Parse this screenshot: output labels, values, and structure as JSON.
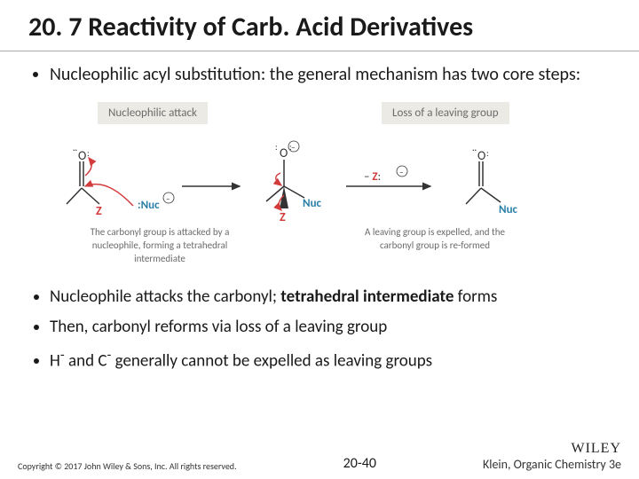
{
  "title": "20. 7 Reactivity of Carb. Acid Derivatives",
  "bullets_top": [
    "Nucleophilic acyl substitution: the general mechanism has  two core steps:"
  ],
  "bullets_bottom": [
    {
      "html": "Nucleophile attacks the carbonyl; <b>tetrahedral intermediate</b> forms"
    },
    {
      "html": "Then, carbonyl reforms via loss of a leaving group"
    },
    {
      "html": "H<sup>-</sup> and C<sup>-</sup> generally cannot be expelled as leaving groups"
    }
  ],
  "diagram": {
    "stage1_label": "Nucleophilic attack",
    "stage2_label": "Loss of a leaving group",
    "caption1": "The carbonyl group\nis attacked by a nucleophile,\nforming a tetrahedral intermediate",
    "caption2": "A leaving group is expelled,\nand the carbonyl group is re-formed",
    "nuc_label": "Nuc",
    "z_label": "Z",
    "minus_z": "– Z:",
    "colors": {
      "nuc": "#2a7fa8",
      "lg": "#d23b3b",
      "arrow_red": "#d23b3b",
      "bond": "#333333",
      "text_gray": "#6b6b6b",
      "box_bg": "#eceae4"
    }
  },
  "footer": {
    "copyright": "Copyright © 2017 John Wiley & Sons, Inc. All rights reserved.",
    "page": "20-40",
    "publisher": "WILEY",
    "ref": "Klein, Organic Chemistry 3e"
  }
}
